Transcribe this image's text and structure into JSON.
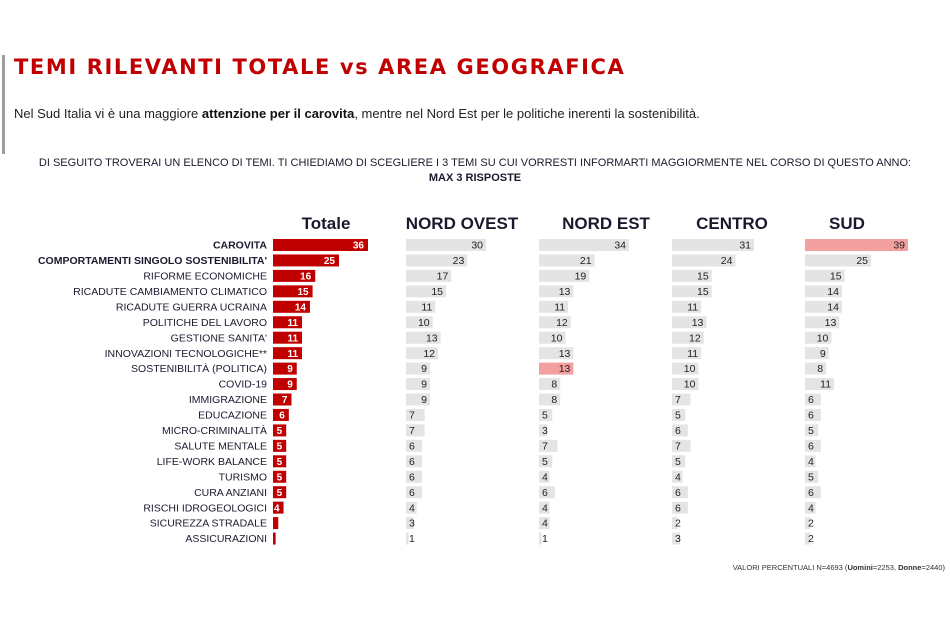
{
  "slide": {
    "title": "TEMI RILEVANTI TOTALE vs AREA GEOGRAFICA",
    "subtitle_pre": "Nel Sud Italia vi è una maggiore ",
    "subtitle_bold": "attenzione per il carovita",
    "subtitle_post": ", mentre nel Nord Est per le politiche inerenti la sostenibilità.",
    "question_line1": "DI SEGUITO TROVERAI UN ELENCO DI TEMI. TI CHIEDIAMO DI SCEGLIERE I 3 TEMI SU CUI VORRESTI INFORMARTI MAGGIORMENTE NEL CORSO DI QUESTO ANNO:",
    "question_line2": "MAX 3 RISPOSTE",
    "footnote_pre": "VALORI PERCENTUALI N=4693 (",
    "footnote_u_label": "Uomini",
    "footnote_u_val": "=2253, ",
    "footnote_d_label": "Donne",
    "footnote_d_val": "=2440)"
  },
  "colors": {
    "title": "#c00000",
    "total_bar": "#c00000",
    "area_bar": "#e4e4e4",
    "highlight_bar": "#f4a0a0"
  },
  "chart_data": {
    "type": "bar",
    "categories": [
      "CAROVITA",
      "COMPORTAMENTI SINGOLO SOSTENIBILITA'",
      "RIFORME ECONOMICHE",
      "RICADUTE CAMBIAMENTO CLIMATICO",
      "RICADUTE GUERRA UCRAINA",
      "POLITICHE DEL LAVORO",
      "GESTIONE SANITA'",
      "INNOVAZIONI TECNOLOGICHE**",
      "SOSTENIBILITÀ (POLITICA)",
      "COVID-19",
      "IMMIGRAZIONE",
      "EDUCAZIONE",
      "MICRO-CRIMINALITÀ",
      "SALUTE MENTALE",
      "LIFE-WORK BALANCE",
      "TURISMO",
      "CURA ANZIANI",
      "RISCHI IDROGEOLOGICI",
      "SICUREZZA STRADALE",
      "ASSICURAZIONI"
    ],
    "bold_categories": [
      0,
      1
    ],
    "series": [
      {
        "name": "Totale",
        "values": [
          36,
          25,
          16,
          15,
          14,
          11,
          11,
          11,
          9,
          9,
          7,
          6,
          5,
          5,
          5,
          5,
          5,
          4,
          2,
          1
        ]
      },
      {
        "name": "NORD OVEST",
        "values": [
          30,
          23,
          17,
          15,
          11,
          10,
          13,
          12,
          9,
          9,
          9,
          7,
          7,
          6,
          6,
          6,
          6,
          4,
          3,
          1
        ]
      },
      {
        "name": "NORD EST",
        "values": [
          34,
          21,
          19,
          13,
          11,
          12,
          10,
          13,
          13,
          8,
          8,
          5,
          3,
          7,
          5,
          4,
          6,
          4,
          4,
          1
        ]
      },
      {
        "name": "CENTRO",
        "values": [
          31,
          24,
          15,
          15,
          11,
          13,
          12,
          11,
          10,
          10,
          7,
          5,
          6,
          7,
          5,
          4,
          6,
          6,
          2,
          3
        ]
      },
      {
        "name": "SUD",
        "values": [
          39,
          25,
          15,
          14,
          14,
          13,
          10,
          9,
          8,
          11,
          6,
          6,
          5,
          6,
          4,
          5,
          6,
          4,
          2,
          2
        ]
      }
    ],
    "highlights": [
      {
        "series": 2,
        "category": 8
      },
      {
        "series": 4,
        "category": 0
      }
    ]
  }
}
